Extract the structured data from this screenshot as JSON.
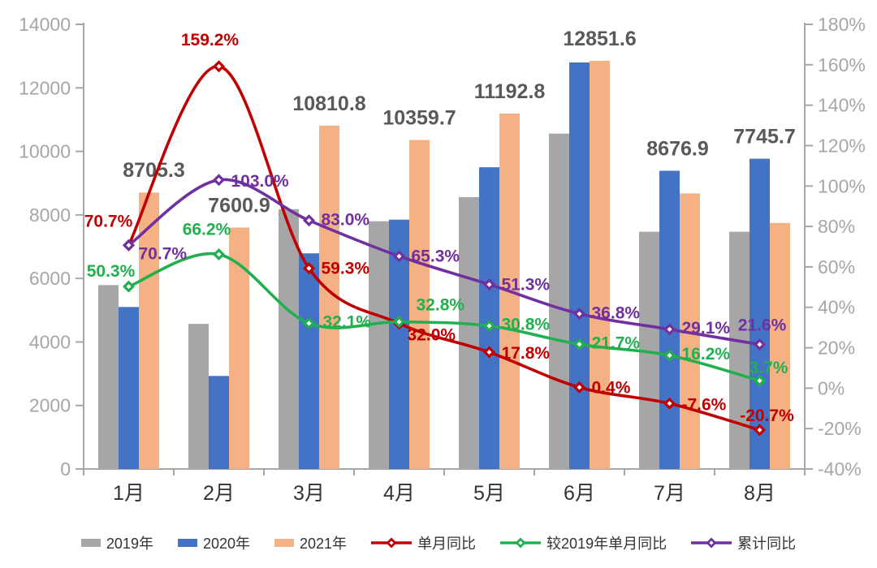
{
  "chart_data": {
    "type": "combo-bar-line",
    "categories": [
      "1月",
      "2月",
      "3月",
      "4月",
      "5月",
      "6月",
      "7月",
      "8月"
    ],
    "bar_series": [
      {
        "name": "2019年",
        "color": "#a6a6a6",
        "values": [
          5790,
          4570,
          8180,
          7800,
          8560,
          10560,
          7470,
          7470
        ]
      },
      {
        "name": "2020年",
        "color": "#4472c4",
        "values": [
          5100,
          2930,
          6790,
          7850,
          9500,
          12800,
          9390,
          9770
        ]
      },
      {
        "name": "2021年",
        "color": "#f4b183",
        "values": [
          8705.3,
          7600.9,
          10810.8,
          10359.7,
          11192.8,
          12851.6,
          8676.9,
          7745.7
        ],
        "labels": [
          "8705.3",
          "7600.9",
          "10810.8",
          "10359.7",
          "11192.8",
          "12851.6",
          "8676.9",
          "7745.7"
        ]
      }
    ],
    "line_series": [
      {
        "name": "单月同比",
        "color": "#c00000",
        "marker": "diamond",
        "values": [
          70.7,
          159.2,
          59.3,
          32.0,
          17.8,
          0.4,
          -7.6,
          -20.7
        ],
        "labels": [
          "70.7%",
          "159.2%",
          "59.3%",
          "32.0%",
          "17.8%",
          "0.4%",
          "-7.6%",
          "-20.7%"
        ]
      },
      {
        "name": "较2019年单月同比",
        "color": "#21b050",
        "marker": "diamond",
        "values": [
          50.3,
          66.2,
          32.1,
          32.8,
          30.8,
          21.7,
          16.2,
          3.7
        ],
        "labels": [
          "50.3%",
          "66.2%",
          "32.1%",
          "32.8%",
          "30.8%",
          "21.7%",
          "16.2%",
          "3.7%"
        ]
      },
      {
        "name": "累计同比",
        "color": "#7030a0",
        "marker": "diamond",
        "values": [
          70.7,
          103.0,
          83.0,
          65.3,
          51.3,
          36.8,
          29.1,
          21.6
        ],
        "labels": [
          "70.7%",
          "103.0%",
          "83.0%",
          "65.3%",
          "51.3%",
          "36.8%",
          "29.1%",
          "21.6%"
        ]
      }
    ],
    "left_axis": {
      "min": 0,
      "max": 14000,
      "step": 2000,
      "tick_labels": [
        "0",
        "2000",
        "4000",
        "6000",
        "8000",
        "10000",
        "12000",
        "14000"
      ]
    },
    "right_axis": {
      "min": -40,
      "max": 180,
      "step": 20,
      "tick_labels": [
        "-40%",
        "-20%",
        "0%",
        "20%",
        "40%",
        "60%",
        "80%",
        "100%",
        "120%",
        "140%",
        "160%",
        "180%"
      ]
    },
    "legend_position": "bottom",
    "grid": false,
    "title": ""
  },
  "colors": {
    "axis": "#a6a6a6",
    "value_label": "#595959",
    "category_label": "#333333",
    "legend_text": "#333333",
    "background": "#ffffff"
  }
}
